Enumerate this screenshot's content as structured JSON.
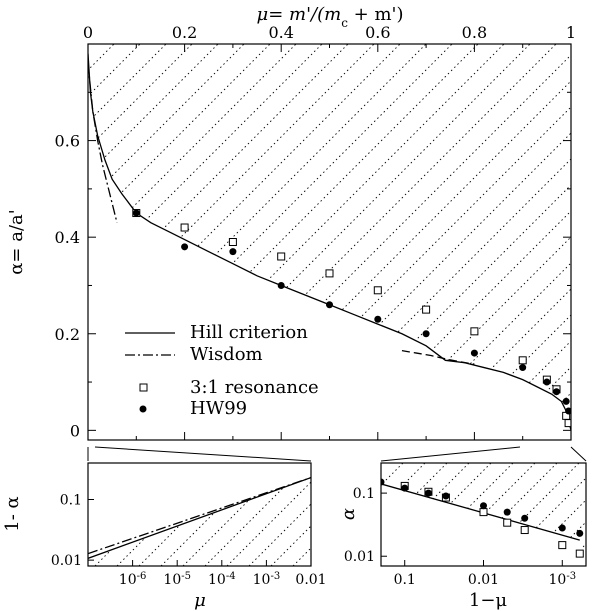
{
  "chart_data": [
    {
      "id": "main",
      "type": "scatter",
      "xlabel_top": "μ= m'/(mc + m')",
      "xlabel_top_parts": {
        "prefix": "μ= m'/(m",
        "sub": "c",
        "suffix": " + m')"
      },
      "ylabel": "α= a/a'",
      "xlim": [
        0,
        1
      ],
      "ylim": [
        -0.02,
        0.8
      ],
      "xticks": [
        0,
        0.2,
        0.4,
        0.6,
        0.8,
        1
      ],
      "xtick_labels": [
        "0",
        "0.2",
        "0.4",
        "0.6",
        "0.8",
        "1"
      ],
      "yticks": [
        0,
        0.2,
        0.4,
        0.6
      ],
      "ytick_labels": [
        "0",
        "0.2",
        "0.4",
        "0.6"
      ],
      "legend_placement": "lower-left",
      "grid": false,
      "hatch": "dotted diagonal lines fill the region above the Hill criterion curve",
      "series": [
        {
          "name": "Hill criterion",
          "style": "solid-line",
          "x": [
            0.0,
            0.005,
            0.01,
            0.02,
            0.035,
            0.05,
            0.07,
            0.1,
            0.13,
            0.17,
            0.2,
            0.25,
            0.3,
            0.35,
            0.4,
            0.45,
            0.5,
            0.55,
            0.6,
            0.65,
            0.7,
            0.74,
            0.78,
            0.82,
            0.86,
            0.9,
            0.93,
            0.96,
            0.98,
            0.99,
            1.0
          ],
          "y": [
            0.78,
            0.7,
            0.66,
            0.61,
            0.56,
            0.52,
            0.49,
            0.45,
            0.43,
            0.41,
            0.395,
            0.37,
            0.345,
            0.32,
            0.3,
            0.28,
            0.26,
            0.24,
            0.22,
            0.2,
            0.175,
            0.145,
            0.14,
            0.13,
            0.12,
            0.105,
            0.09,
            0.075,
            0.06,
            0.04,
            0.0
          ]
        },
        {
          "name": "Wisdom",
          "style": "dash-dot-line",
          "x": [
            0.0,
            0.01,
            0.02,
            0.03,
            0.04,
            0.06
          ],
          "y": [
            0.76,
            0.66,
            0.6,
            0.55,
            0.51,
            0.43
          ]
        },
        {
          "name": "",
          "style": "dashed-line",
          "x": [
            0.65,
            0.68,
            0.71,
            0.74,
            0.77,
            0.8
          ],
          "y": [
            0.165,
            0.16,
            0.155,
            0.148,
            0.142,
            0.137
          ]
        },
        {
          "name": "3:1 resonance",
          "style": "open-square",
          "x": [
            0.1,
            0.2,
            0.3,
            0.4,
            0.5,
            0.6,
            0.7,
            0.8,
            0.9,
            0.95,
            0.97,
            0.99,
            0.995
          ],
          "y": [
            0.45,
            0.42,
            0.39,
            0.36,
            0.325,
            0.29,
            0.25,
            0.205,
            0.145,
            0.105,
            0.085,
            0.03,
            0.015
          ]
        },
        {
          "name": "HW99",
          "style": "filled-circle",
          "x": [
            0.1,
            0.2,
            0.3,
            0.4,
            0.5,
            0.6,
            0.7,
            0.8,
            0.9,
            0.95,
            0.97,
            0.99,
            0.995
          ],
          "y": [
            0.45,
            0.38,
            0.37,
            0.3,
            0.26,
            0.23,
            0.2,
            0.16,
            0.13,
            0.1,
            0.08,
            0.06,
            0.04
          ]
        }
      ]
    },
    {
      "id": "inset-left",
      "type": "line",
      "xlabel": "μ",
      "ylabel": "1- α",
      "xscale": "log",
      "yscale": "log",
      "xlim": [
        1e-07,
        0.01
      ],
      "ylim": [
        0.008,
        0.4
      ],
      "xticks": [
        1e-06,
        1e-05,
        0.0001,
        0.001,
        0.01
      ],
      "xtick_labels": [
        "10-6",
        "10-5",
        "10-4",
        "10-3",
        "0.01"
      ],
      "xtick_label_parts": [
        [
          "10",
          "-6"
        ],
        [
          "10",
          "-5"
        ],
        [
          "10",
          "-4"
        ],
        [
          "10",
          "-3"
        ],
        [
          "0.01",
          ""
        ]
      ],
      "yticks": [
        0.01,
        0.1
      ],
      "ytick_labels": [
        "0.01",
        "0.1"
      ],
      "series": [
        {
          "name": "Hill criterion",
          "style": "solid-line",
          "x": [
            1e-07,
            0.01
          ],
          "y": [
            0.0107,
            0.23
          ]
        },
        {
          "name": "Wisdom",
          "style": "dash-dot-line",
          "x": [
            1e-07,
            0.01
          ],
          "y": [
            0.0128,
            0.23
          ]
        }
      ]
    },
    {
      "id": "inset-right",
      "type": "scatter",
      "xlabel": "1−μ",
      "ylabel": "α",
      "xscale": "log-reversed",
      "yscale": "log",
      "xlim": [
        0.2,
        0.0005
      ],
      "ylim": [
        0.007,
        0.3
      ],
      "xticks": [
        0.1,
        0.01,
        0.001
      ],
      "xtick_labels": [
        "0.1",
        "0.01",
        "10-3"
      ],
      "xtick_label_parts": [
        [
          "0.1",
          ""
        ],
        [
          "0.01",
          ""
        ],
        [
          "10",
          "-3"
        ]
      ],
      "yticks": [
        0.01,
        0.1
      ],
      "ytick_labels": [
        "0.01",
        "0.1"
      ],
      "series": [
        {
          "name": "Hill criterion",
          "style": "solid-line",
          "x": [
            0.2,
            0.0006
          ],
          "y": [
            0.14,
            0.018
          ]
        },
        {
          "name": "3:1 resonance",
          "style": "open-square",
          "x": [
            0.1,
            0.05,
            0.03,
            0.01,
            0.005,
            0.003,
            0.001,
            0.0006
          ],
          "y": [
            0.13,
            0.105,
            0.085,
            0.05,
            0.034,
            0.026,
            0.015,
            0.011
          ]
        },
        {
          "name": "HW99",
          "style": "filled-circle",
          "x": [
            0.2,
            0.1,
            0.05,
            0.03,
            0.01,
            0.005,
            0.003,
            0.001,
            0.0006
          ],
          "y": [
            0.15,
            0.12,
            0.1,
            0.09,
            0.063,
            0.05,
            0.04,
            0.028,
            0.023
          ]
        }
      ]
    }
  ]
}
